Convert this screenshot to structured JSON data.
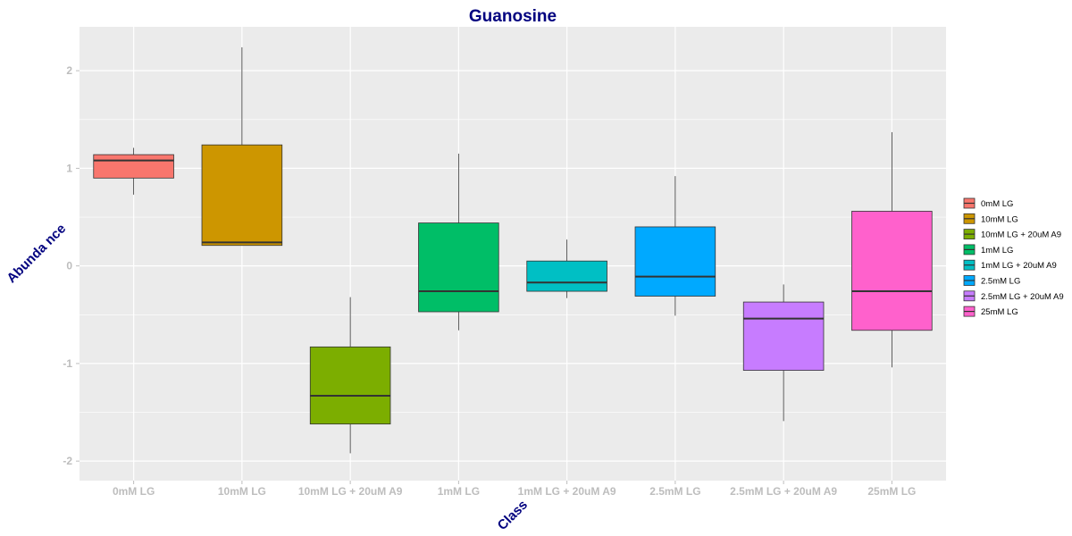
{
  "chart_data": {
    "type": "box",
    "title": "Guanosine",
    "xlabel": "Class",
    "ylabel": "Abunda nce",
    "ylim": [
      -2.2,
      2.45
    ],
    "yticks": [
      -2,
      -1,
      0,
      1,
      2
    ],
    "ytick_labels": [
      "-2",
      "-1",
      "0",
      "1",
      "2"
    ],
    "grid": true,
    "legend_position": "right",
    "categories": [
      "0mM LG",
      "10mM LG",
      "10mM LG + 20uM A9",
      "1mM LG",
      "1mM LG + 20uM A9",
      "2.5mM LG",
      "2.5mM LG + 20uM A9",
      "25mM LG"
    ],
    "series": [
      {
        "name": "0mM LG",
        "color": "#F8766D",
        "min": 0.73,
        "q1": 0.9,
        "median": 1.08,
        "q3": 1.14,
        "max": 1.21
      },
      {
        "name": "10mM LG",
        "color": "#CD9600",
        "min": 0.21,
        "q1": 0.21,
        "median": 0.24,
        "q3": 1.24,
        "max": 2.24
      },
      {
        "name": "10mM LG + 20uM A9",
        "color": "#7CAE00",
        "min": -1.92,
        "q1": -1.62,
        "median": -1.33,
        "q3": -0.83,
        "max": -0.32
      },
      {
        "name": "1mM LG",
        "color": "#00BE67",
        "min": -0.66,
        "q1": -0.47,
        "median": -0.26,
        "q3": 0.44,
        "max": 1.15
      },
      {
        "name": "1mM LG + 20uM A9",
        "color": "#00BFC4",
        "min": -0.33,
        "q1": -0.26,
        "median": -0.17,
        "q3": 0.05,
        "max": 0.27
      },
      {
        "name": "2.5mM LG",
        "color": "#00A9FF",
        "min": -0.51,
        "q1": -0.31,
        "median": -0.11,
        "q3": 0.4,
        "max": 0.92
      },
      {
        "name": "2.5mM LG + 20uM A9",
        "color": "#C77CFF",
        "min": -1.59,
        "q1": -1.07,
        "median": -0.54,
        "q3": -0.37,
        "max": -0.19
      },
      {
        "name": "25mM LG",
        "color": "#FF61CC",
        "min": -1.04,
        "q1": -0.66,
        "median": -0.26,
        "q3": 0.56,
        "max": 1.37
      }
    ]
  }
}
